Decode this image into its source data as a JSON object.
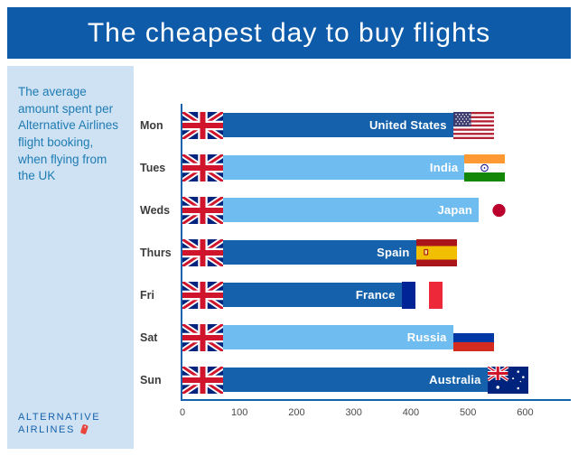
{
  "header": {
    "title": "The cheapest day to buy flights"
  },
  "sidebar": {
    "description": "The average amount spent per Alternative Airlines flight booking, when flying from the UK",
    "logo": {
      "line1": "ALTERNATIVE",
      "line2": "AIRLINES",
      "icon": "luggage-tag-icon"
    }
  },
  "chart_data": {
    "type": "bar",
    "orientation": "horizontal",
    "title": "The cheapest day to buy flights",
    "categories": [
      "Mon",
      "Tues",
      "Weds",
      "Thurs",
      "Fri",
      "Sat",
      "Sun"
    ],
    "series": [
      {
        "name": "Average amount spent per booking",
        "values": [
          545,
          565,
          590,
          480,
          455,
          545,
          605
        ]
      }
    ],
    "rows": [
      {
        "day": "Mon",
        "country": "United States",
        "value": 545,
        "shade": "dark",
        "origin_flag": "uk",
        "dest_flag": "us"
      },
      {
        "day": "Tues",
        "country": "India",
        "value": 565,
        "shade": "light",
        "origin_flag": "uk",
        "dest_flag": "india"
      },
      {
        "day": "Weds",
        "country": "Japan",
        "value": 590,
        "shade": "light",
        "origin_flag": "uk",
        "dest_flag": "japan"
      },
      {
        "day": "Thurs",
        "country": "Spain",
        "value": 480,
        "shade": "dark",
        "origin_flag": "uk",
        "dest_flag": "spain"
      },
      {
        "day": "Fri",
        "country": "France",
        "value": 455,
        "shade": "dark",
        "origin_flag": "uk",
        "dest_flag": "france"
      },
      {
        "day": "Sat",
        "country": "Russia",
        "value": 545,
        "shade": "light",
        "origin_flag": "uk",
        "dest_flag": "russia"
      },
      {
        "day": "Sun",
        "country": "Australia",
        "value": 605,
        "shade": "dark",
        "origin_flag": "uk",
        "dest_flag": "australia"
      }
    ],
    "x_ticks": [
      0,
      100,
      200,
      300,
      400,
      500,
      600
    ],
    "xlim": [
      0,
      680
    ],
    "grid": false,
    "legend": false,
    "colors": {
      "dark": "#1561ab",
      "light": "#6fbcf0",
      "axis": "#1561ab",
      "header_bg": "#0d5ba9",
      "sidebar_bg": "#cfe2f3"
    }
  }
}
